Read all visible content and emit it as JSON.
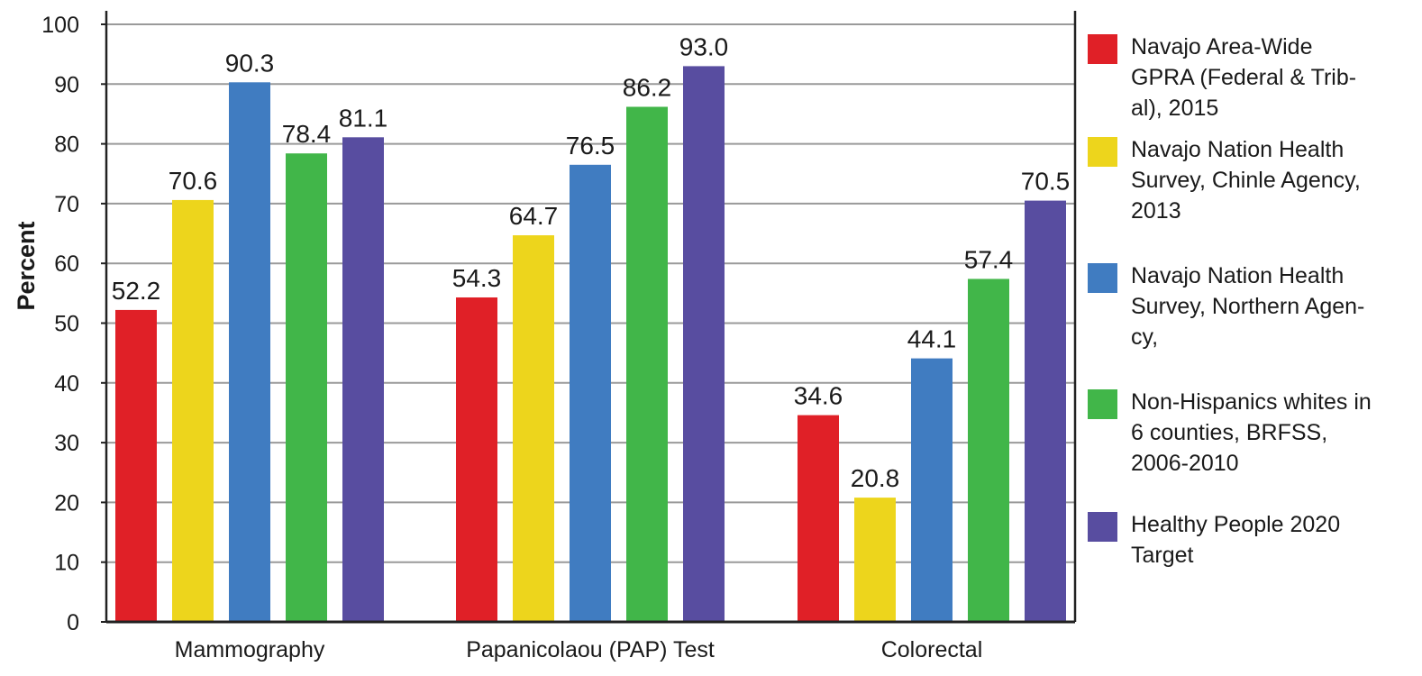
{
  "chart_data": {
    "type": "bar",
    "ylabel": "Percent",
    "xlabel": "",
    "ylim": [
      0,
      100
    ],
    "yticks": [
      0,
      10,
      20,
      30,
      40,
      50,
      60,
      70,
      80,
      90,
      100
    ],
    "grid": true,
    "legend_position": "right",
    "categories": [
      "Mammography",
      "Papanicolaou (PAP) Test",
      "Colorectal"
    ],
    "series": [
      {
        "name": "Navajo Area-Wide GPRA (Federal & Tribal), 2015",
        "legend_lines": [
          "Navajo Area-Wide",
          "GPRA (Federal & Trib-",
          "al), 2015"
        ],
        "color": "#e02027",
        "values": [
          52.2,
          54.3,
          34.6
        ],
        "labels": [
          "52.2",
          "54.3",
          "34.6"
        ]
      },
      {
        "name": "Navajo Nation Health Survey, Chinle Agency, 2013",
        "legend_lines": [
          "Navajo Nation Health",
          "Survey, Chinle Agency,",
          "2013"
        ],
        "color": "#edd51c",
        "values": [
          70.6,
          64.7,
          20.8
        ],
        "labels": [
          "70.6",
          "64.7",
          "20.8"
        ]
      },
      {
        "name": "Navajo Nation Health Survey, Northern Agency,",
        "legend_lines": [
          "Navajo Nation Health",
          "Survey, Northern Agen-",
          "cy,"
        ],
        "color": "#407cc1",
        "values": [
          90.3,
          76.5,
          44.1
        ],
        "labels": [
          "90.3",
          "76.5",
          "44.1"
        ]
      },
      {
        "name": "Non-Hispanics whites in 6 counties, BRFSS, 2006-2010",
        "legend_lines": [
          "Non-Hispanics whites in",
          "6 counties, BRFSS,",
          "2006-2010"
        ],
        "color": "#41b649",
        "values": [
          78.4,
          86.2,
          57.4
        ],
        "labels": [
          "78.4",
          "86.2",
          "57.4"
        ]
      },
      {
        "name": "Healthy People 2020 Target",
        "legend_lines": [
          "Healthy People 2020",
          "Target"
        ],
        "color": "#584da0",
        "values": [
          81.1,
          93.0,
          70.5
        ],
        "labels": [
          "81.1",
          "93.0",
          "70.5"
        ]
      }
    ]
  }
}
